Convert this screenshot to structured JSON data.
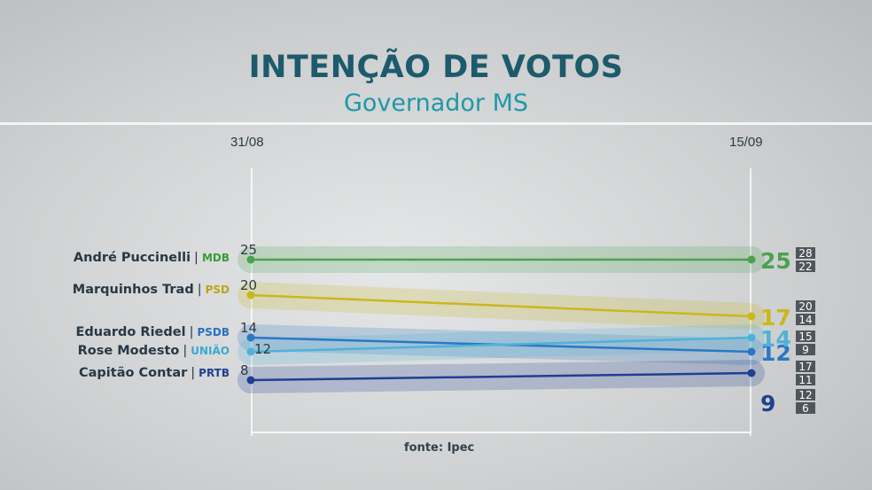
{
  "header": {
    "title": "INTENÇÃO DE VOTOS",
    "subtitle": "Governador MS"
  },
  "source": "fonte: Ipec",
  "chart_data": {
    "type": "line",
    "title": "INTENÇÃO DE VOTOS",
    "subtitle": "Governador MS",
    "x": [
      "31/08",
      "15/09"
    ],
    "grid": false,
    "series": [
      {
        "name": "André Puccinelli",
        "party": "MDB",
        "color": "#4aa24f",
        "party_color": "#3c9a3c",
        "values": [
          25,
          25
        ],
        "margin_of_error": [
          28,
          22
        ]
      },
      {
        "name": "Marquinhos Trad",
        "party": "PSD",
        "color": "#c9b81c",
        "party_color": "#b9a615",
        "values": [
          20,
          17
        ],
        "margin_of_error": [
          20,
          14
        ]
      },
      {
        "name": "Eduardo Riedel",
        "party": "PSDB",
        "color": "#2a78c4",
        "party_color": "#2a6fc0",
        "values": [
          14,
          12
        ],
        "margin_of_error": [
          15,
          9
        ]
      },
      {
        "name": "Rose Modesto",
        "party": "UNIÃO",
        "color": "#4eb2d8",
        "party_color": "#3aa9d3",
        "values": [
          12,
          14
        ],
        "margin_of_error": [
          17,
          11
        ]
      },
      {
        "name": "Capitão Contar",
        "party": "PRTB",
        "color": "#1f3f93",
        "party_color": "#22408f",
        "values": [
          8,
          9
        ],
        "margin_of_error": [
          12,
          6
        ]
      }
    ]
  }
}
